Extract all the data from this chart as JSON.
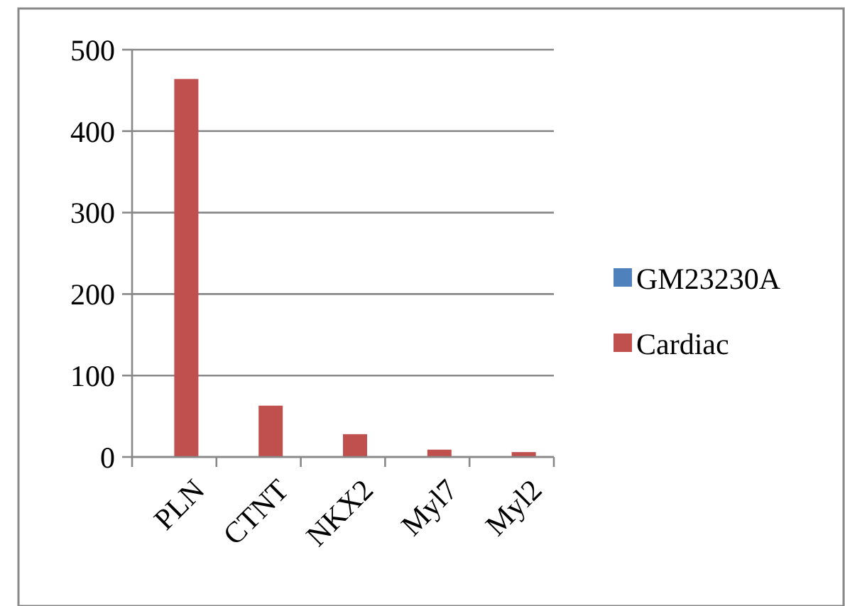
{
  "chart_data": {
    "type": "bar",
    "categories": [
      "PLN",
      "CTNT",
      "NKX2",
      "Myl7",
      "Myl2"
    ],
    "series": [
      {
        "name": "GM23230A",
        "color": "#4f81bd",
        "values": [
          0,
          0,
          0,
          0,
          0
        ]
      },
      {
        "name": "Cardiac",
        "color": "#c0504d",
        "values": [
          464,
          63,
          28,
          9,
          6
        ]
      }
    ],
    "ylim": [
      0,
      500
    ],
    "yticks": [
      0,
      100,
      200,
      300,
      400,
      500
    ],
    "grid": "y",
    "legend": "right"
  }
}
